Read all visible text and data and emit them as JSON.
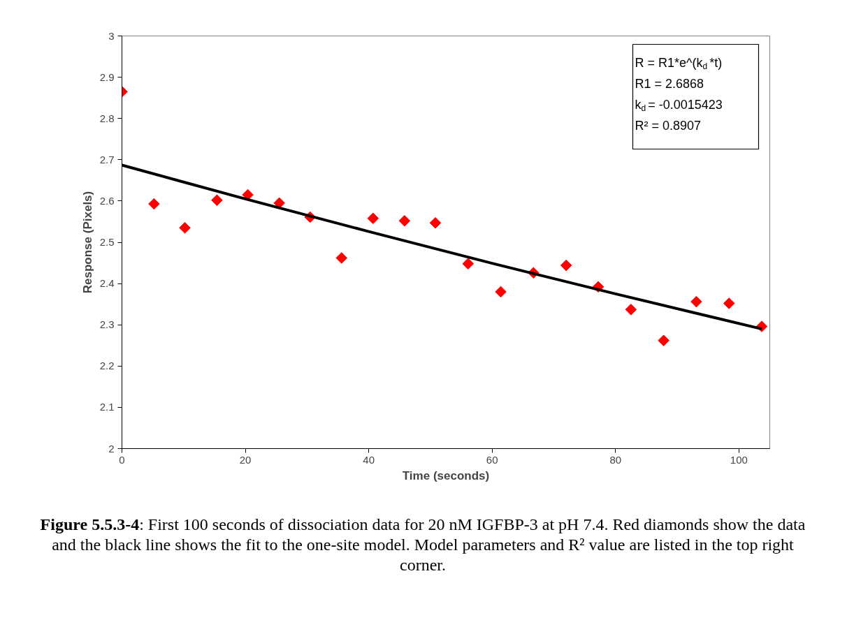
{
  "chart_data": {
    "type": "scatter",
    "xlabel": "Time (seconds)",
    "ylabel": "Response (Pixels)",
    "xlim": [
      0,
      105
    ],
    "xticks": [
      0,
      20,
      40,
      60,
      80,
      100
    ],
    "ylim": [
      2,
      3
    ],
    "yticks": [
      2,
      2.1,
      2.2,
      2.3,
      2.4,
      2.5,
      2.6,
      2.7,
      2.8,
      2.9,
      3
    ],
    "marker": "diamond",
    "series": [
      {
        "color": "#ff0000",
        "x": [
          0,
          5.2,
          10.2,
          15.4,
          20.4,
          25.5,
          30.5,
          35.6,
          40.7,
          45.8,
          50.8,
          56.1,
          61.4,
          66.7,
          72.0,
          77.2,
          82.5,
          87.8,
          93.1,
          98.4,
          103.7
        ],
        "values": [
          2.865,
          2.593,
          2.535,
          2.602,
          2.615,
          2.595,
          2.561,
          2.462,
          2.558,
          2.552,
          2.547,
          2.448,
          2.38,
          2.426,
          2.444,
          2.392,
          2.337,
          2.262,
          2.356,
          2.352,
          2.296
        ]
      },
      {
        "type": "line",
        "marker": "none",
        "color": "#000000",
        "x": [
          0,
          20,
          40,
          60,
          80,
          103.7
        ],
        "values": [
          2.687,
          2.605,
          2.526,
          2.449,
          2.375,
          2.29
        ]
      }
    ],
    "annotations": [
      "R = R1*e^(k$_{d}$*t)",
      "R1 = 2.6868",
      "k$_{d}$ = -0.0015423",
      "R² = 0.8907",
      "Figure 5.5.3-4: First 100 seconds of dissociation data for 20 nM IGFBP-3 at pH 7.4. Red diamonds show the data and the black line shows the fit to the one-site model. Model parameters and R² value are listed in the top right corner."
    ]
  }
}
